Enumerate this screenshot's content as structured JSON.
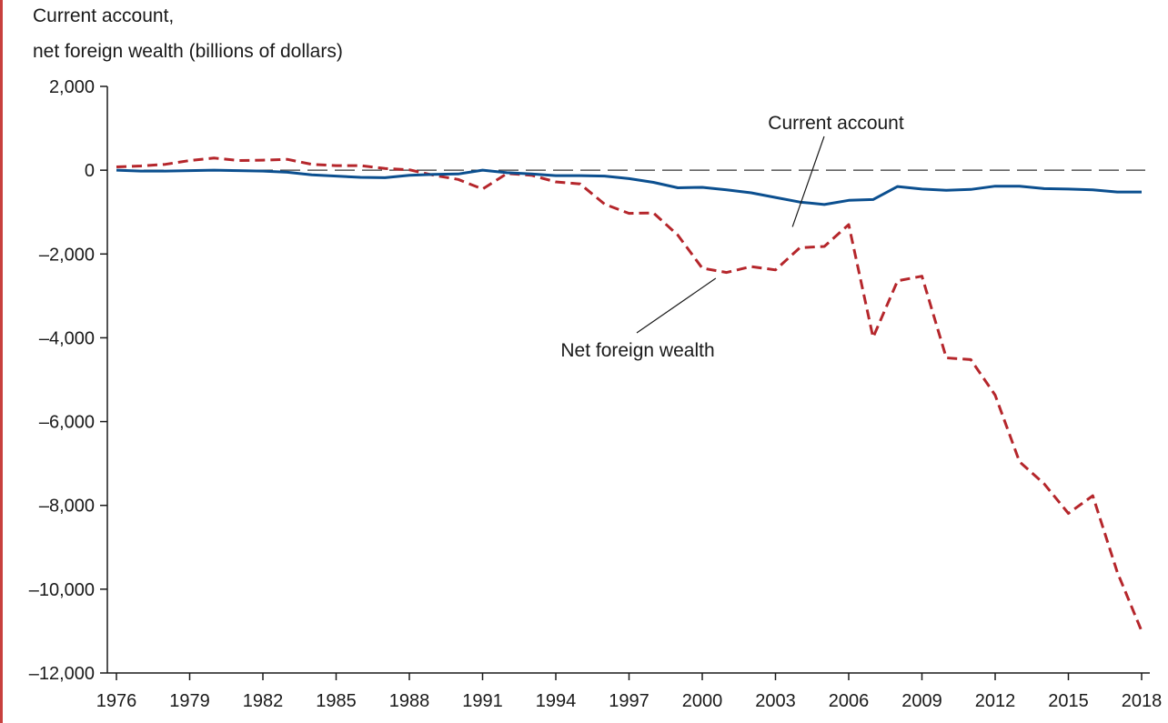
{
  "chart_data": {
    "type": "line",
    "title": "",
    "ylabel_lines": [
      "Current account,",
      "net foreign wealth (billions of dollars)"
    ],
    "xlabel": "",
    "ylim": [
      -12000,
      2000
    ],
    "yticks": [
      2000,
      0,
      -2000,
      -4000,
      -6000,
      -8000,
      -10000,
      -12000
    ],
    "ytick_labels": [
      "2,000",
      "0",
      "–2,000",
      "–4,000",
      "–6,000",
      "–8,000",
      "–10,000",
      "–12,000"
    ],
    "xlim": [
      1976,
      2018
    ],
    "xticks": [
      1976,
      1979,
      1982,
      1985,
      1988,
      1991,
      1994,
      1997,
      2000,
      2003,
      2006,
      2009,
      2012,
      2015,
      2018
    ],
    "xtick_labels": [
      "1976",
      "1979",
      "1982",
      "1985",
      "1988",
      "1991",
      "1994",
      "1997",
      "2000",
      "2003",
      "2006",
      "2009",
      "2012",
      "2015",
      "2018"
    ],
    "grid": false,
    "legend": "none",
    "x": [
      1976,
      1977,
      1978,
      1979,
      1980,
      1981,
      1982,
      1983,
      1984,
      1985,
      1986,
      1987,
      1988,
      1989,
      1990,
      1991,
      1992,
      1993,
      1994,
      1995,
      1996,
      1997,
      1998,
      1999,
      2000,
      2001,
      2002,
      2003,
      2004,
      2005,
      2006,
      2007,
      2008,
      2009,
      2010,
      2011,
      2012,
      2013,
      2014,
      2015,
      2016,
      2017,
      2018
    ],
    "series": [
      {
        "name": "Current account",
        "color": "#0b4f8f",
        "style": "solid",
        "values": [
          0,
          -20,
          -20,
          -10,
          0,
          -10,
          -20,
          -50,
          -110,
          -140,
          -170,
          -180,
          -120,
          -100,
          -90,
          0,
          -60,
          -90,
          -130,
          -130,
          -140,
          -200,
          -290,
          -420,
          -410,
          -470,
          -540,
          -650,
          -760,
          -820,
          -720,
          -700,
          -390,
          -450,
          -480,
          -460,
          -380,
          -380,
          -440,
          -450,
          -470,
          -520,
          -520
        ]
      },
      {
        "name": "Net foreign wealth",
        "color": "#b5262b",
        "style": "dashed",
        "values": [
          80,
          100,
          140,
          230,
          290,
          230,
          240,
          260,
          140,
          110,
          110,
          40,
          10,
          -120,
          -220,
          -450,
          -80,
          -120,
          -280,
          -330,
          -810,
          -1030,
          -1020,
          -1550,
          -2340,
          -2440,
          -2300,
          -2380,
          -1850,
          -1820,
          -1300,
          -3990,
          -2640,
          -2530,
          -4480,
          -4520,
          -5370,
          -6960,
          -7480,
          -8190,
          -7770,
          -9590,
          -11000
        ]
      }
    ],
    "reference_line": {
      "y": 0,
      "style": "dashed",
      "color": "#333333"
    },
    "annotations": [
      {
        "text": "Current account",
        "x": 2005,
        "y": -700
      },
      {
        "text": "Net foreign wealth",
        "x": 2001,
        "y": -2450
      }
    ]
  }
}
